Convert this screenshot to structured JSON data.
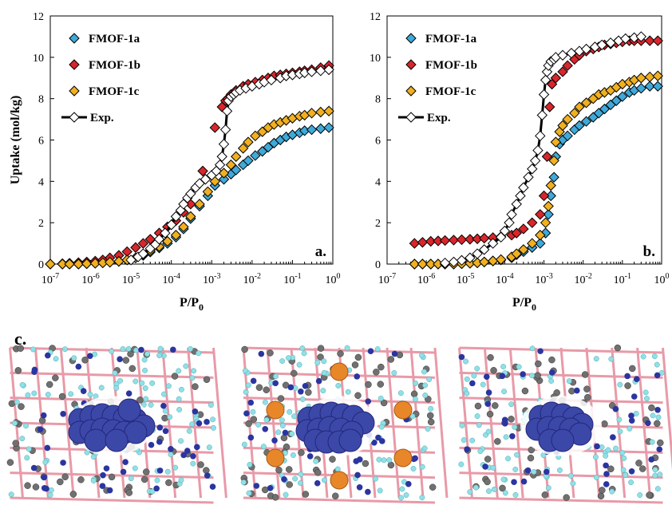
{
  "panel_c_label": "c.",
  "colors": {
    "FMOF-1a": "#3fa9d9",
    "FMOF-1b": "#d9262b",
    "FMOF-1c": "#f0b020",
    "Exp.": "#000000",
    "framework_bond_pink": "#e89aa8",
    "framework_node_blue": "#2b35a0",
    "framework_atom_cyan": "#8fe0e8",
    "framework_carbon_gray": "#707070",
    "guest_blue": "#3c48a8",
    "guest_orange": "#e8872a"
  },
  "chart_data": [
    {
      "type": "scatter",
      "panel_label": "a.",
      "xlabel": "P/P0",
      "ylabel": "Uptake (mol/kg)",
      "xscale": "log",
      "xlim": [
        1e-07,
        1
      ],
      "ylim": [
        0,
        12
      ],
      "xticks": [
        "10-7",
        "10-6",
        "10-5",
        "10-4",
        "10-3",
        "10-2",
        "10-1",
        "100"
      ],
      "yticks": [
        0,
        2,
        4,
        6,
        8,
        10,
        12
      ],
      "legend_position": "top-left",
      "series": [
        {
          "name": "FMOF-1a",
          "marker": "diamond",
          "x": [
            1e-07,
            2e-07,
            3e-07,
            5e-07,
            8e-07,
            1.3e-06,
            2e-06,
            3e-06,
            5e-06,
            8e-06,
            1.3e-05,
            2e-05,
            3e-05,
            5e-05,
            8e-05,
            0.00013,
            0.0002,
            0.0003,
            0.0005,
            0.0008,
            0.0012,
            0.002,
            0.003,
            0.004,
            0.006,
            0.008,
            0.012,
            0.018,
            0.025,
            0.035,
            0.05,
            0.07,
            0.1,
            0.15,
            0.2,
            0.3,
            0.5,
            0.8
          ],
          "y": [
            0,
            0,
            0,
            0,
            0.02,
            0.04,
            0.06,
            0.09,
            0.13,
            0.2,
            0.3,
            0.42,
            0.58,
            0.78,
            1.0,
            1.3,
            1.7,
            2.2,
            2.8,
            3.3,
            3.8,
            4.1,
            4.35,
            4.55,
            4.8,
            5.0,
            5.25,
            5.45,
            5.65,
            5.85,
            6.0,
            6.15,
            6.25,
            6.35,
            6.45,
            6.5,
            6.55,
            6.6
          ]
        },
        {
          "name": "FMOF-1b",
          "marker": "diamond",
          "x": [
            2e-07,
            3e-07,
            5e-07,
            8e-07,
            1.3e-06,
            2e-06,
            3e-06,
            5e-06,
            8e-06,
            1.3e-05,
            2e-05,
            3e-05,
            5e-05,
            8e-05,
            0.00013,
            0.0002,
            0.0003,
            0.0006,
            0.0012,
            0.0018,
            0.0022,
            0.0025,
            0.003,
            0.004,
            0.006,
            0.008,
            0.012,
            0.018,
            0.025,
            0.035,
            0.05,
            0.07,
            0.1,
            0.15,
            0.2,
            0.3,
            0.5,
            0.8
          ],
          "y": [
            0.02,
            0.04,
            0.07,
            0.1,
            0.14,
            0.2,
            0.3,
            0.42,
            0.6,
            0.8,
            1.0,
            1.2,
            1.5,
            1.8,
            2.1,
            2.5,
            2.9,
            4.5,
            6.6,
            7.6,
            7.9,
            8.0,
            8.2,
            8.4,
            8.6,
            8.7,
            8.8,
            8.9,
            9.0,
            9.1,
            9.15,
            9.2,
            9.25,
            9.3,
            9.35,
            9.4,
            9.5,
            9.6
          ]
        },
        {
          "name": "FMOF-1c",
          "marker": "diamond",
          "x": [
            1e-07,
            2e-07,
            3e-07,
            5e-07,
            8e-07,
            1.3e-06,
            2e-06,
            3e-06,
            5e-06,
            8e-06,
            1.3e-05,
            2e-05,
            3e-05,
            5e-05,
            8e-05,
            0.00013,
            0.0002,
            0.0003,
            0.0005,
            0.0008,
            0.0012,
            0.002,
            0.003,
            0.004,
            0.006,
            0.008,
            0.012,
            0.018,
            0.025,
            0.035,
            0.05,
            0.07,
            0.1,
            0.15,
            0.2,
            0.3,
            0.5,
            0.8
          ],
          "y": [
            0,
            0,
            0,
            0,
            0.02,
            0.04,
            0.06,
            0.09,
            0.13,
            0.2,
            0.3,
            0.45,
            0.65,
            0.85,
            1.1,
            1.4,
            1.8,
            2.3,
            2.9,
            3.5,
            4.0,
            4.4,
            4.8,
            5.2,
            5.6,
            5.9,
            6.2,
            6.4,
            6.6,
            6.75,
            6.85,
            6.95,
            7.05,
            7.15,
            7.2,
            7.3,
            7.35,
            7.4
          ]
        },
        {
          "name": "Exp.",
          "marker": "diamond-open",
          "line": true,
          "x": [
            1e-05,
            1.5e-05,
            2e-05,
            3e-05,
            4e-05,
            5e-05,
            7e-05,
            0.0001,
            0.00013,
            0.00017,
            0.0002,
            0.00025,
            0.0003,
            0.0004,
            0.0005,
            0.0007,
            0.001,
            0.0013,
            0.0016,
            0.0018,
            0.002,
            0.0022,
            0.0024,
            0.0026,
            0.003,
            0.0035,
            0.004,
            0.005,
            0.007,
            0.01,
            0.015,
            0.02,
            0.03,
            0.05,
            0.07,
            0.1,
            0.15,
            0.2,
            0.3,
            0.5,
            0.8
          ],
          "y": [
            0.2,
            0.35,
            0.5,
            0.75,
            0.95,
            1.2,
            1.5,
            1.9,
            2.3,
            2.6,
            2.9,
            3.2,
            3.4,
            3.7,
            3.9,
            4.1,
            4.3,
            4.5,
            4.8,
            5.2,
            5.8,
            6.5,
            7.4,
            7.9,
            8.1,
            8.2,
            8.3,
            8.4,
            8.5,
            8.6,
            8.7,
            8.8,
            8.9,
            9.0,
            9.1,
            9.15,
            9.2,
            9.25,
            9.3,
            9.35,
            9.4
          ]
        }
      ]
    },
    {
      "type": "scatter",
      "panel_label": "b.",
      "xlabel": "P/P0",
      "ylabel": "",
      "xscale": "log",
      "xlim": [
        1e-07,
        1
      ],
      "ylim": [
        0,
        12
      ],
      "xticks": [
        "10-7",
        "10-6",
        "10-5",
        "10-4",
        "10-3",
        "10-2",
        "10-1",
        "100"
      ],
      "yticks": [
        0,
        2,
        4,
        6,
        8,
        10,
        12
      ],
      "legend_position": "top-left",
      "series": [
        {
          "name": "FMOF-1a",
          "marker": "diamond",
          "x": [
            5e-07,
            8e-07,
            1.3e-06,
            2e-06,
            3e-06,
            5e-06,
            8e-06,
            1.3e-05,
            2e-05,
            3e-05,
            5e-05,
            8e-05,
            0.00015,
            0.0002,
            0.0003,
            0.0005,
            0.0008,
            0.0011,
            0.0013,
            0.0015,
            0.0018,
            0.002,
            0.0025,
            0.003,
            0.004,
            0.006,
            0.008,
            0.012,
            0.018,
            0.025,
            0.035,
            0.05,
            0.07,
            0.1,
            0.15,
            0.2,
            0.3,
            0.5,
            0.8
          ],
          "y": [
            0,
            0,
            0,
            0,
            0,
            0,
            0.02,
            0.04,
            0.06,
            0.1,
            0.15,
            0.2,
            0.3,
            0.45,
            0.6,
            0.8,
            1.0,
            1.5,
            2.4,
            3.3,
            4.2,
            5.2,
            5.8,
            6.0,
            6.2,
            6.5,
            6.7,
            6.9,
            7.1,
            7.3,
            7.5,
            7.7,
            7.9,
            8.1,
            8.3,
            8.4,
            8.5,
            8.6,
            8.6
          ]
        },
        {
          "name": "FMOF-1b",
          "marker": "diamond",
          "x": [
            5e-07,
            8e-07,
            1.3e-06,
            2e-06,
            3e-06,
            5e-06,
            8e-06,
            1.3e-05,
            2e-05,
            3e-05,
            5e-05,
            8e-05,
            0.00015,
            0.0002,
            0.0003,
            0.0005,
            0.0008,
            0.001,
            0.0012,
            0.0014,
            0.0016,
            0.002,
            0.003,
            0.004,
            0.006,
            0.008,
            0.012,
            0.018,
            0.025,
            0.035,
            0.05,
            0.07,
            0.1,
            0.15,
            0.2,
            0.3,
            0.5,
            0.8
          ],
          "y": [
            1.0,
            1.05,
            1.1,
            1.12,
            1.14,
            1.16,
            1.18,
            1.2,
            1.22,
            1.25,
            1.28,
            1.32,
            1.4,
            1.5,
            1.7,
            2.0,
            2.4,
            3.3,
            5.2,
            7.6,
            8.7,
            9.0,
            9.3,
            9.6,
            9.9,
            10.1,
            10.3,
            10.4,
            10.5,
            10.6,
            10.65,
            10.7,
            10.75,
            10.8,
            10.8,
            10.8,
            10.8,
            10.8
          ]
        },
        {
          "name": "FMOF-1c",
          "marker": "diamond",
          "x": [
            5e-07,
            8e-07,
            1.3e-06,
            2e-06,
            3e-06,
            5e-06,
            8e-06,
            1.3e-05,
            2e-05,
            3e-05,
            5e-05,
            8e-05,
            0.00015,
            0.0002,
            0.0003,
            0.0005,
            0.0008,
            0.0011,
            0.0013,
            0.0015,
            0.0018,
            0.002,
            0.0025,
            0.003,
            0.004,
            0.006,
            0.008,
            0.012,
            0.018,
            0.025,
            0.035,
            0.05,
            0.07,
            0.1,
            0.15,
            0.2,
            0.3,
            0.5,
            0.8
          ],
          "y": [
            0,
            0,
            0,
            0,
            0,
            0,
            0.02,
            0.04,
            0.06,
            0.1,
            0.15,
            0.22,
            0.35,
            0.5,
            0.7,
            1.0,
            1.4,
            2.0,
            2.8,
            3.8,
            5.0,
            5.9,
            6.4,
            6.7,
            7.0,
            7.3,
            7.6,
            7.8,
            8.0,
            8.2,
            8.3,
            8.4,
            8.55,
            8.7,
            8.8,
            8.9,
            9.0,
            9.05,
            9.1
          ]
        },
        {
          "name": "Exp.",
          "marker": "diamond-open",
          "line": true,
          "x": [
            3e-06,
            5e-06,
            8e-06,
            1.3e-05,
            2e-05,
            3e-05,
            5e-05,
            8e-05,
            0.0001,
            0.00013,
            0.00015,
            0.0002,
            0.00025,
            0.0003,
            0.0004,
            0.0005,
            0.0006,
            0.0007,
            0.0008,
            0.0009,
            0.001,
            0.0011,
            0.0012,
            0.0013,
            0.0015,
            0.0018,
            0.002,
            0.003,
            0.005,
            0.008,
            0.012,
            0.02,
            0.03,
            0.05,
            0.08,
            0.12,
            0.2,
            0.3
          ],
          "y": [
            0.05,
            0.1,
            0.18,
            0.3,
            0.5,
            0.7,
            1.0,
            1.3,
            1.6,
            2.0,
            2.4,
            2.9,
            3.3,
            3.7,
            4.2,
            4.6,
            5.0,
            5.5,
            6.2,
            7.2,
            8.2,
            8.9,
            9.3,
            9.6,
            9.8,
            9.9,
            10.0,
            10.1,
            10.2,
            10.3,
            10.4,
            10.5,
            10.6,
            10.7,
            10.8,
            10.9,
            10.95,
            11.0
          ]
        }
      ]
    }
  ]
}
